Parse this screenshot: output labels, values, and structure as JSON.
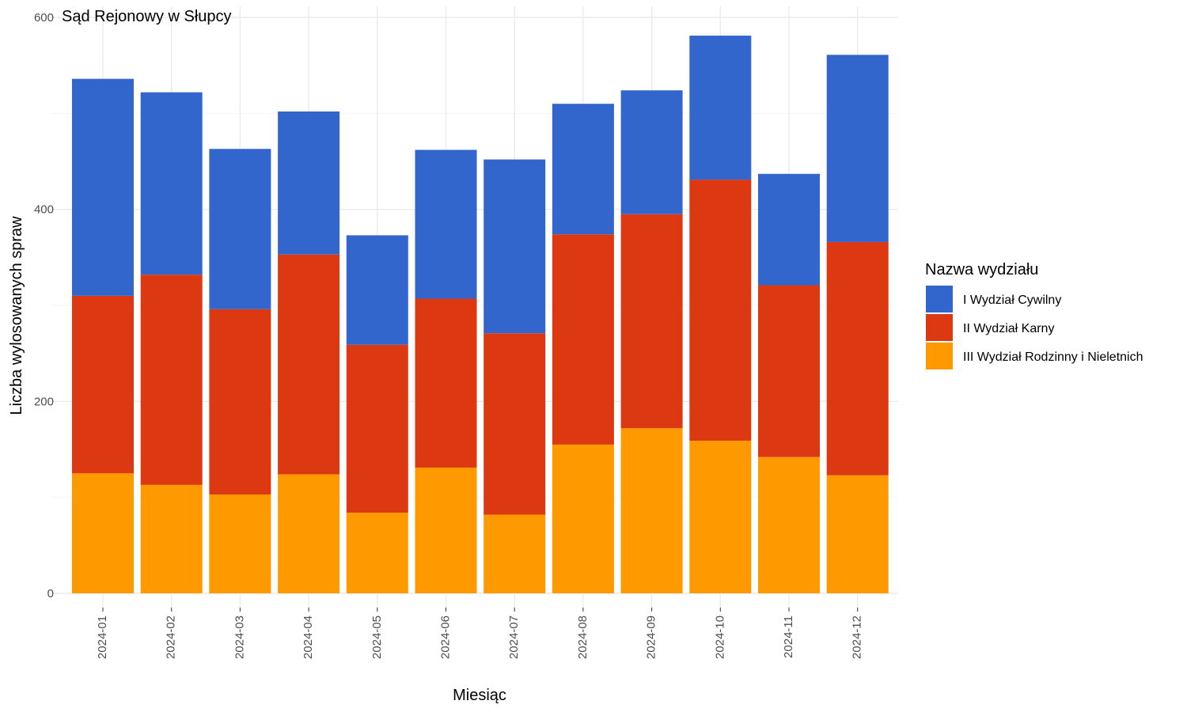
{
  "chart_data": {
    "type": "bar",
    "stacked": true,
    "title": "Sąd Rejonowy w Słupcy",
    "xlabel": "Miesiąc",
    "ylabel": "Liczba wylosowanych spraw",
    "ylim": [
      0,
      600
    ],
    "yticks": [
      0,
      200,
      400,
      600
    ],
    "grid": true,
    "legend_position": "right",
    "legend_title": "Nazwa wydziału",
    "categories": [
      "2024-01",
      "2024-02",
      "2024-03",
      "2024-04",
      "2024-05",
      "2024-06",
      "2024-07",
      "2024-08",
      "2024-09",
      "2024-10",
      "2024-11",
      "2024-12"
    ],
    "series": [
      {
        "name": "III Wydział Rodzinny i Nieletnich",
        "color": "#FF9900",
        "values": [
          125,
          113,
          103,
          124,
          84,
          131,
          82,
          155,
          172,
          159,
          142,
          123
        ]
      },
      {
        "name": "II Wydział Karny",
        "color": "#DC3912",
        "values": [
          185,
          219,
          193,
          229,
          175,
          176,
          189,
          219,
          223,
          272,
          179,
          243
        ]
      },
      {
        "name": "I Wydział Cywilny",
        "color": "#3366CC",
        "values": [
          226,
          190,
          167,
          149,
          114,
          155,
          181,
          136,
          129,
          150,
          116,
          195
        ]
      }
    ],
    "legend_order": [
      "I Wydział Cywilny",
      "II Wydział Karny",
      "III Wydział Rodzinny i Nieletnich"
    ]
  }
}
